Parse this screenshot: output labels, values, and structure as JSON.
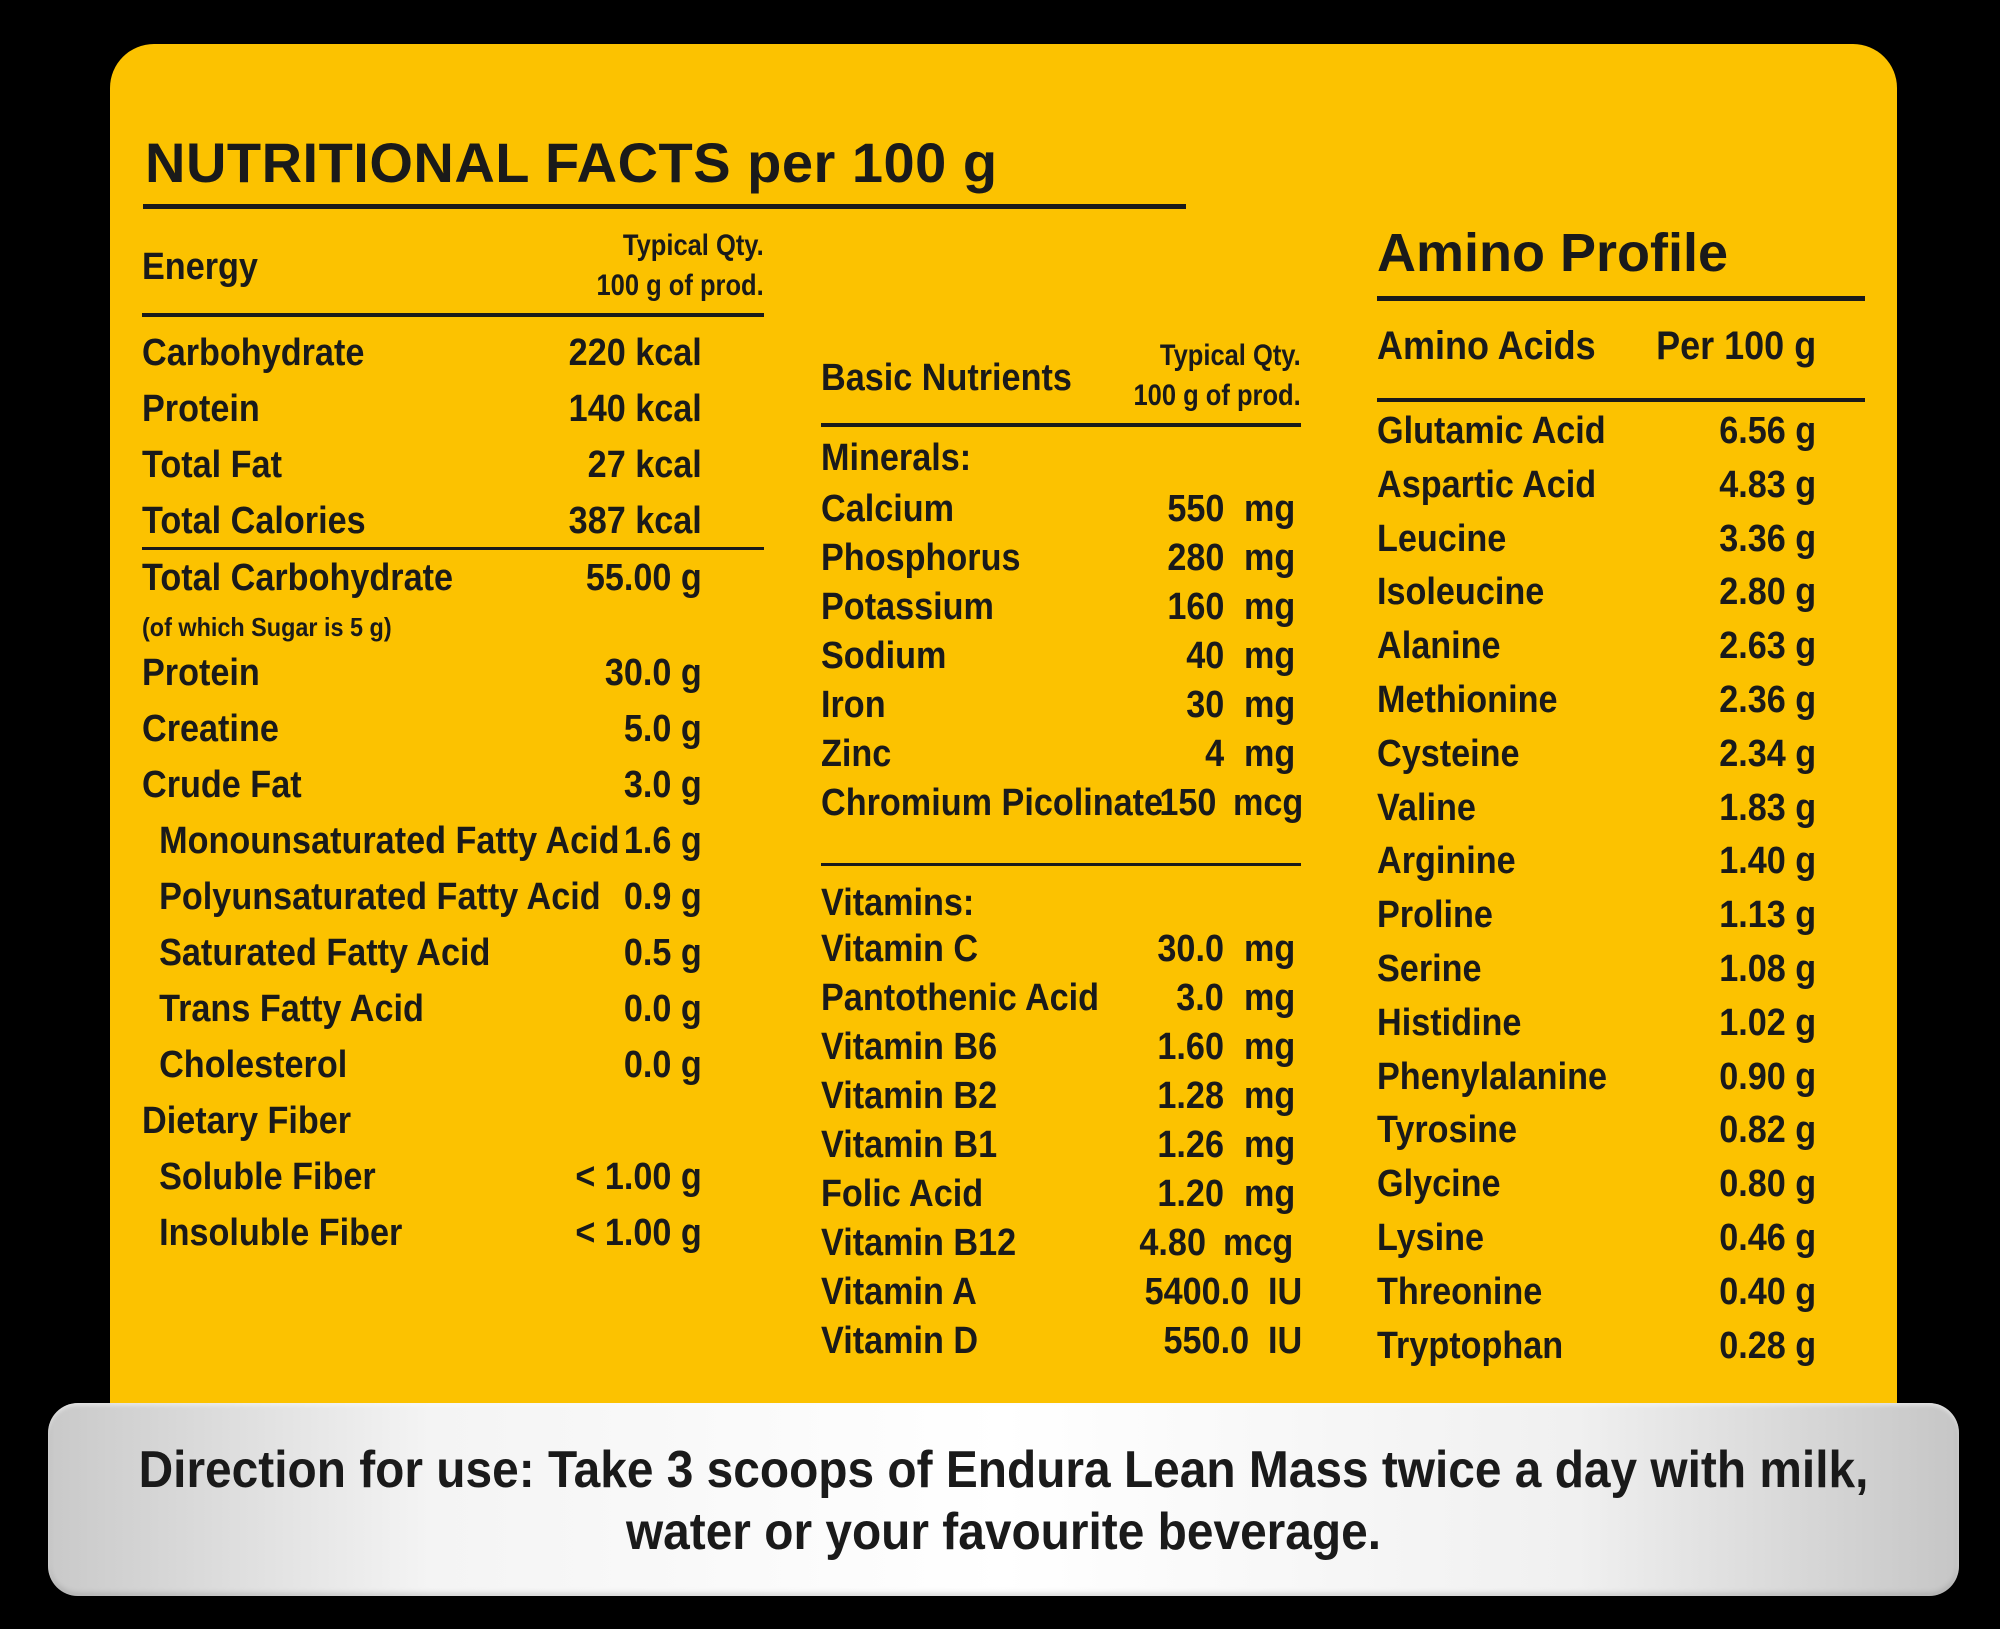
{
  "title": "NUTRITIONAL FACTS per 100 g",
  "energy": {
    "header": "Energy",
    "qty_line1": "Typical Qty.",
    "qty_line2": "100 g of prod.",
    "rows": [
      {
        "label": "Carbohydrate",
        "value": "220 kcal"
      },
      {
        "label": "Protein",
        "value": "140 kcal"
      },
      {
        "label": "Total Fat",
        "value": "27 kcal"
      },
      {
        "label": "Total Calories",
        "value": "387 kcal"
      }
    ],
    "composition": [
      {
        "label": "Total Carbohydrate",
        "value": "55.00 g"
      },
      {
        "label": "Protein",
        "value": "30.0 g"
      },
      {
        "label": "Creatine",
        "value": "5.0 g"
      },
      {
        "label": "Crude Fat",
        "value": "3.0 g"
      },
      {
        "label": "Monounsaturated Fatty Acid",
        "value": "1.6 g"
      },
      {
        "label": "Polyunsaturated Fatty Acid",
        "value": "0.9 g"
      },
      {
        "label": "Saturated Fatty Acid",
        "value": "0.5 g"
      },
      {
        "label": "Trans Fatty Acid",
        "value": "0.0 g"
      },
      {
        "label": "Cholesterol",
        "value": "0.0 g"
      },
      {
        "label": "Dietary Fiber",
        "value": ""
      },
      {
        "label": "Soluble Fiber",
        "value": "< 1.00 g"
      },
      {
        "label": "Insoluble Fiber",
        "value": "< 1.00 g"
      }
    ],
    "sugar_note": "(of which Sugar is 5 g)"
  },
  "basic": {
    "header": "Basic Nutrients",
    "qty_line1": "Typical Qty.",
    "qty_line2": "100 g of prod.",
    "minerals_label": "Minerals:",
    "minerals": [
      {
        "label": "Calcium",
        "num": "550",
        "unit": "mg"
      },
      {
        "label": "Phosphorus",
        "num": "280",
        "unit": "mg"
      },
      {
        "label": "Potassium",
        "num": "160",
        "unit": "mg"
      },
      {
        "label": "Sodium",
        "num": "40",
        "unit": "mg"
      },
      {
        "label": "Iron",
        "num": "30",
        "unit": "mg"
      },
      {
        "label": "Zinc",
        "num": "4",
        "unit": "mg"
      },
      {
        "label": "Chromium Picolinate",
        "num": "150",
        "unit": "mcg"
      }
    ],
    "vitamins_label": "Vitamins:",
    "vitamins": [
      {
        "label": "Vitamin C",
        "num": "30.0",
        "unit": "mg"
      },
      {
        "label": "Pantothenic Acid",
        "num": "3.0",
        "unit": "mg"
      },
      {
        "label": "Vitamin B6",
        "num": "1.60",
        "unit": "mg"
      },
      {
        "label": "Vitamin B2",
        "num": "1.28",
        "unit": "mg"
      },
      {
        "label": "Vitamin B1",
        "num": "1.26",
        "unit": "mg"
      },
      {
        "label": "Folic Acid",
        "num": "1.20",
        "unit": "mg"
      },
      {
        "label": "Vitamin B12",
        "num": "4.80",
        "unit": "mcg"
      },
      {
        "label": "Vitamin A",
        "num": "5400.0",
        "unit": "IU"
      },
      {
        "label": "Vitamin D",
        "num": "550.0",
        "unit": "IU"
      }
    ]
  },
  "amino": {
    "title": "Amino Profile",
    "col_label": "Amino Acids",
    "col_value": "Per 100 g",
    "rows": [
      {
        "label": "Glutamic Acid",
        "value": "6.56 g"
      },
      {
        "label": "Aspartic Acid",
        "value": "4.83 g"
      },
      {
        "label": "Leucine",
        "value": "3.36 g"
      },
      {
        "label": "Isoleucine",
        "value": "2.80 g"
      },
      {
        "label": "Alanine",
        "value": "2.63 g"
      },
      {
        "label": "Methionine",
        "value": "2.36 g"
      },
      {
        "label": "Cysteine",
        "value": "2.34 g"
      },
      {
        "label": "Valine",
        "value": "1.83 g"
      },
      {
        "label": "Arginine",
        "value": "1.40 g"
      },
      {
        "label": "Proline",
        "value": "1.13 g"
      },
      {
        "label": "Serine",
        "value": "1.08 g"
      },
      {
        "label": "Histidine",
        "value": "1.02 g"
      },
      {
        "label": "Phenylalanine",
        "value": "0.90 g"
      },
      {
        "label": "Tyrosine",
        "value": "0.82 g"
      },
      {
        "label": "Glycine",
        "value": "0.80 g"
      },
      {
        "label": "Lysine",
        "value": "0.46 g"
      },
      {
        "label": "Threonine",
        "value": "0.40 g"
      },
      {
        "label": "Tryptophan",
        "value": "0.28 g"
      }
    ]
  },
  "directions": {
    "line1": "Direction for use: Take 3 scoops of Endura Lean Mass twice a day with milk,",
    "line2": "water or your favourite beverage."
  },
  "colors": {
    "panel": "#fcc200",
    "background": "#000000",
    "text": "#1a1a1a"
  }
}
